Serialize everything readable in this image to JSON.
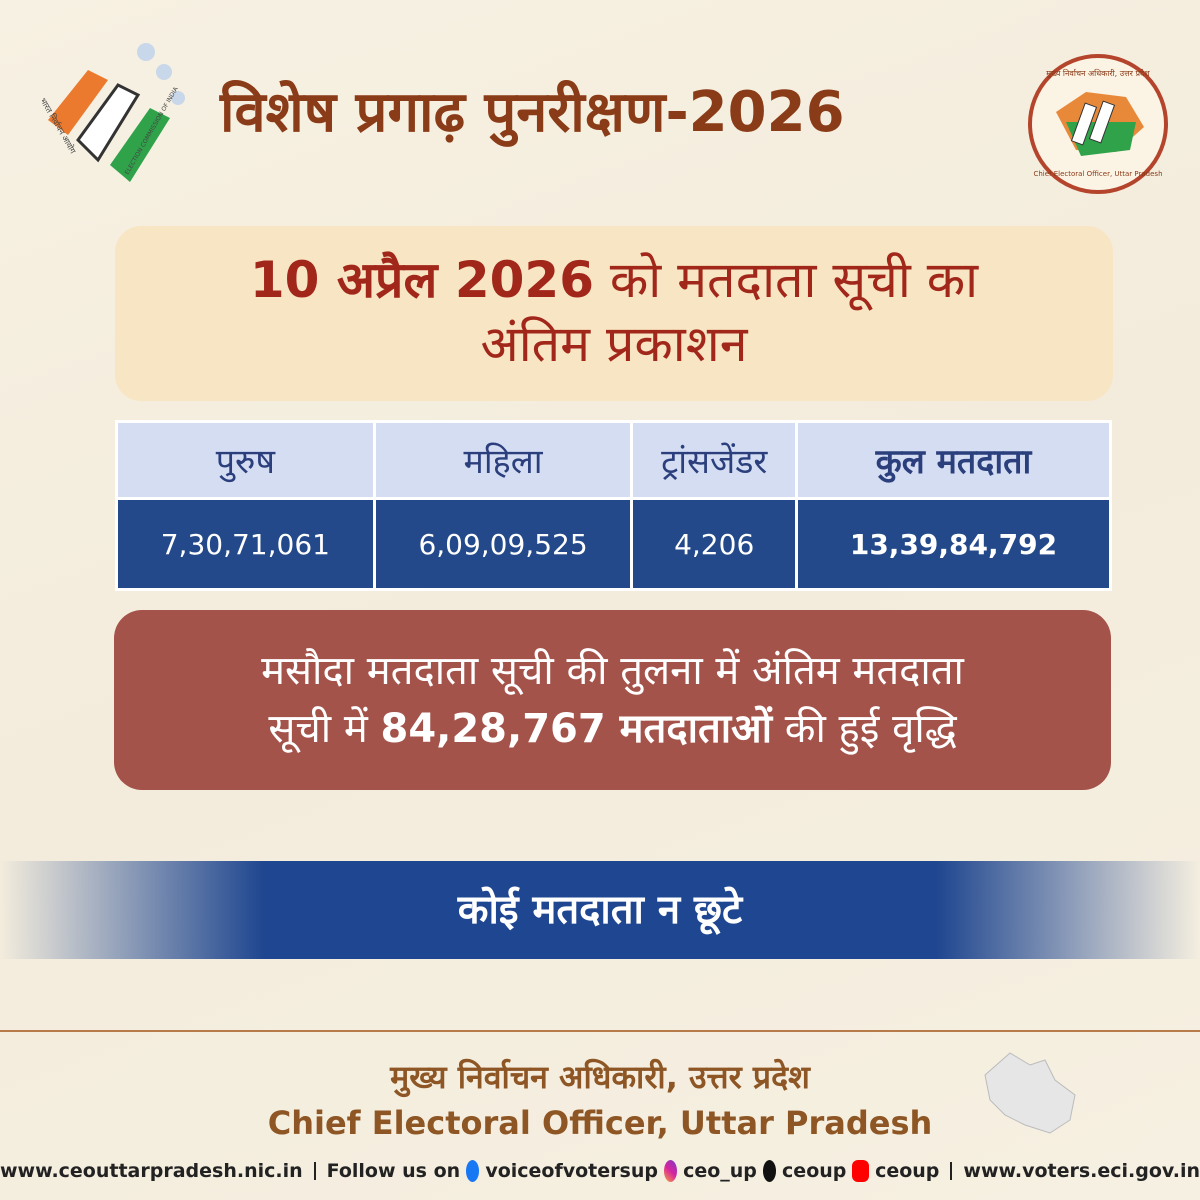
{
  "header": {
    "title": "विशेष प्रगाढ़ पुनरीक्षण-2026"
  },
  "logos": {
    "left": {
      "hindi": "भारत निर्वाचन आयोग",
      "english": "ELECTION COMMISSION OF INDIA"
    },
    "right": {
      "hindi": "मुख्य निर्वाचन अधिकारी, उत्तर प्रदेश",
      "english": "Chief Electoral Officer, Uttar Pradesh"
    }
  },
  "headline": {
    "bold": "10 अप्रैल 2026",
    "line1_rest": "को मतदाता सूची का",
    "line2": "अंतिम प्रकाशन"
  },
  "table": {
    "headers": [
      "पुरुष",
      "महिला",
      "ट्रांसजेंडर",
      "कुल मतदाता"
    ],
    "rows": [
      [
        "7,30,71,061",
        "6,09,09,525",
        "4,206",
        "13,39,84,792"
      ]
    ]
  },
  "summary": {
    "line1": "मसौदा मतदाता सूची की तुलना में अंतिम मतदाता",
    "line2_start": "सूची में",
    "line2_bold": "84,28,767 मतदाताओं",
    "line2_end": "की हुई वृद्धि"
  },
  "banner": "कोई मतदाता न छूटे",
  "footer": {
    "hindi": "मुख्य निर्वाचन अधिकारी, उत्तर प्रदेश",
    "english": "Chief Electoral Officer, Uttar Pradesh"
  },
  "links": {
    "website": "www.ceouttarpradesh.nic.in",
    "follow": "Follow us on",
    "facebook": "voiceofvotersup",
    "instagram": "ceo_up",
    "x": "ceoup",
    "youtube": "ceoup",
    "voters": "www.voters.eci.gov.in"
  }
}
